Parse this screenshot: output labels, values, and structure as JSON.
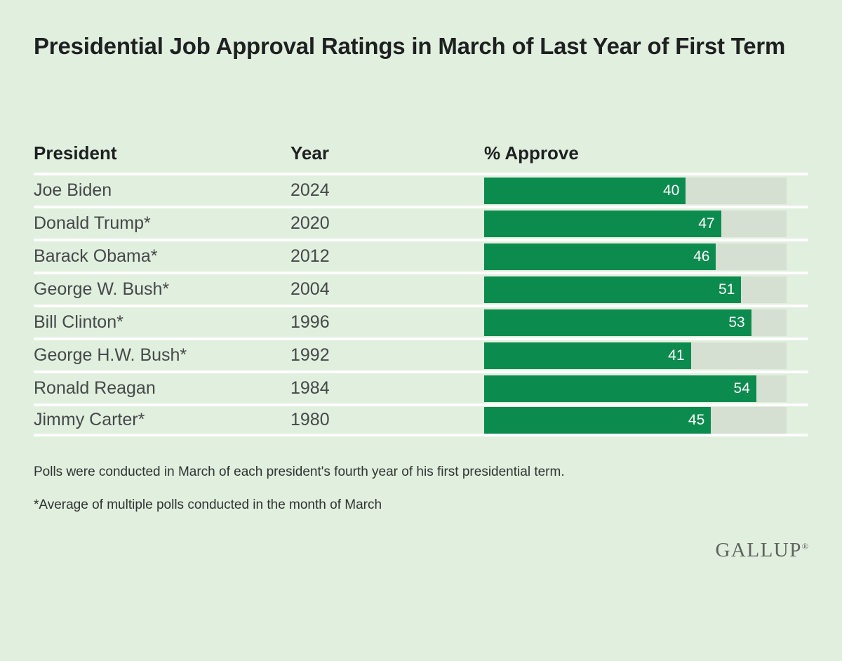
{
  "table": {
    "columns": {
      "president": "President",
      "year": "Year",
      "approve": "% Approve"
    }
  },
  "chart_data": {
    "type": "bar",
    "orientation": "horizontal",
    "title": "Presidential Job Approval Ratings in March of Last Year of First Term",
    "value_label": "% Approve",
    "categories": [
      "Joe Biden",
      "Donald Trump*",
      "Barack Obama*",
      "George W. Bush*",
      "Bill Clinton*",
      "George H.W. Bush*",
      "Ronald Reagan",
      "Jimmy Carter*"
    ],
    "years": [
      "2024",
      "2020",
      "2012",
      "2004",
      "1996",
      "1992",
      "1984",
      "1980"
    ],
    "values": [
      40,
      47,
      46,
      51,
      53,
      41,
      54,
      45
    ],
    "xlim": [
      0,
      60
    ],
    "grid": false,
    "legend": false,
    "value_labels_inside_bars": true
  },
  "notes": {
    "line1": "Polls were conducted in March of each president's fourth year of his first presidential term.",
    "line2": "*Average of multiple polls conducted in the month of March"
  },
  "footer": {
    "logo": "GALLUP",
    "registered_mark": "®"
  },
  "colors": {
    "background": "#e1efde",
    "bar_fill": "#0c8b4e",
    "bar_track": "#d6e0d2",
    "separator": "#ffffff",
    "title_text": "#1e2021",
    "body_text": "#45494a",
    "bar_value_text": "#ffffff",
    "note_text": "#2f3332",
    "logo_text": "#5e635d"
  }
}
